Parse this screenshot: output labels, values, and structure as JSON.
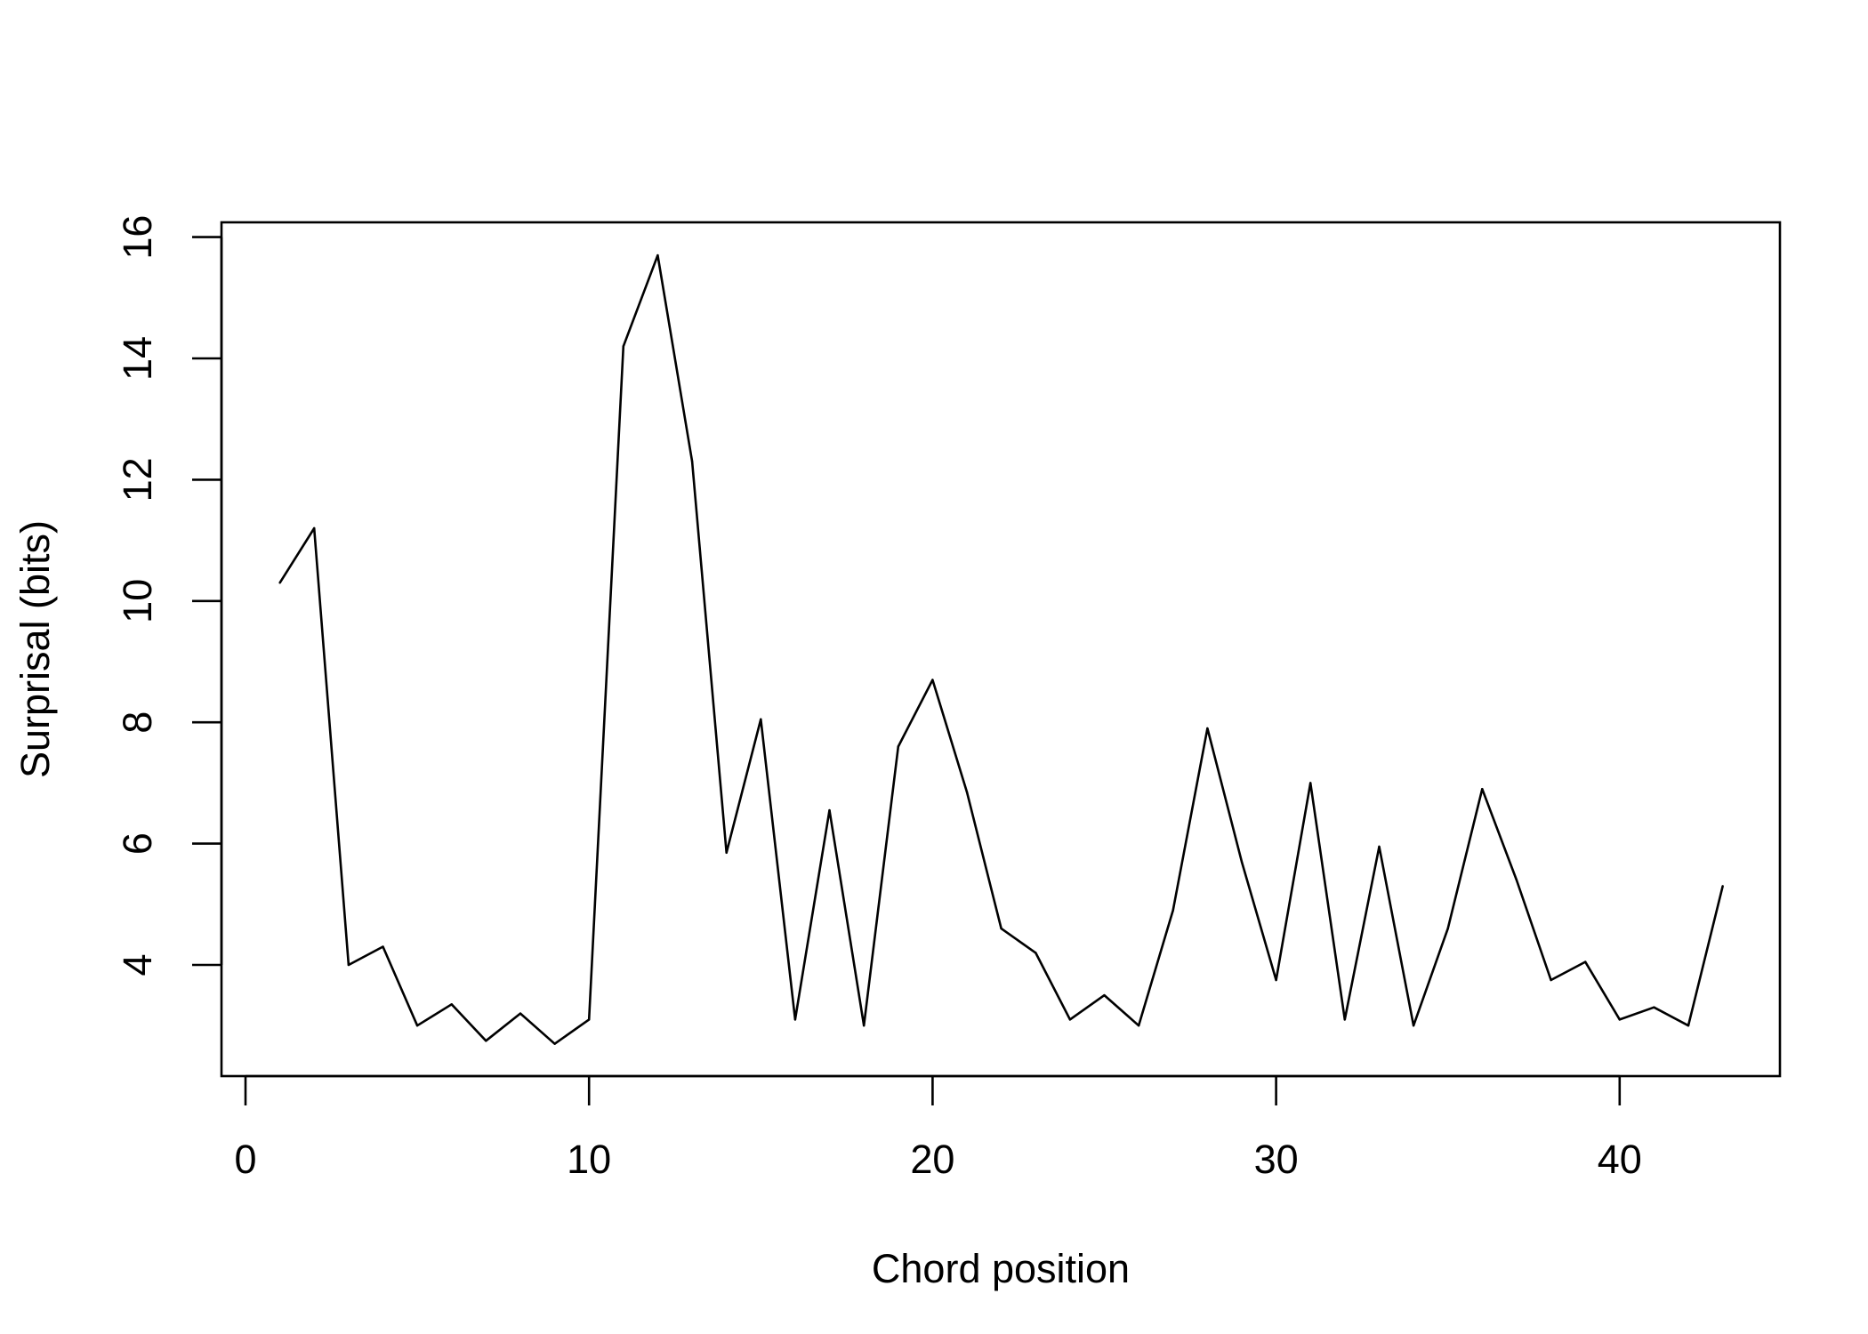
{
  "chart_data": {
    "type": "line",
    "title": "",
    "xlabel": "Chord position",
    "ylabel": "Surprisal (bits)",
    "xlim": [
      0,
      45
    ],
    "ylim": [
      2.2,
      16.25
    ],
    "xticks": [
      0,
      10,
      20,
      30,
      40
    ],
    "yticks": [
      4,
      6,
      8,
      10,
      12,
      14,
      16
    ],
    "grid": false,
    "legend": "none",
    "line_color": "#000000",
    "series": [
      {
        "x": [
          1,
          2,
          3,
          4,
          5,
          6,
          7,
          8,
          9,
          10,
          11,
          12,
          13,
          14,
          15,
          16,
          17,
          18,
          19,
          20,
          21,
          22,
          23,
          24,
          25,
          26,
          27,
          28,
          29,
          30,
          31,
          32,
          33,
          34,
          35,
          36,
          37,
          38,
          39,
          40,
          41,
          42,
          43
        ],
        "values": [
          10.3,
          11.2,
          4.0,
          4.3,
          3.0,
          3.35,
          2.75,
          3.2,
          2.7,
          3.1,
          14.2,
          15.7,
          12.3,
          5.85,
          8.05,
          3.1,
          6.55,
          3.0,
          7.6,
          8.7,
          6.85,
          4.6,
          4.2,
          3.1,
          3.5,
          3.0,
          4.9,
          7.9,
          5.7,
          3.75,
          7.0,
          3.1,
          5.95,
          3.0,
          4.6,
          6.9,
          5.4,
          3.75,
          4.05,
          3.1,
          3.3,
          3.0,
          5.3
        ]
      }
    ]
  }
}
